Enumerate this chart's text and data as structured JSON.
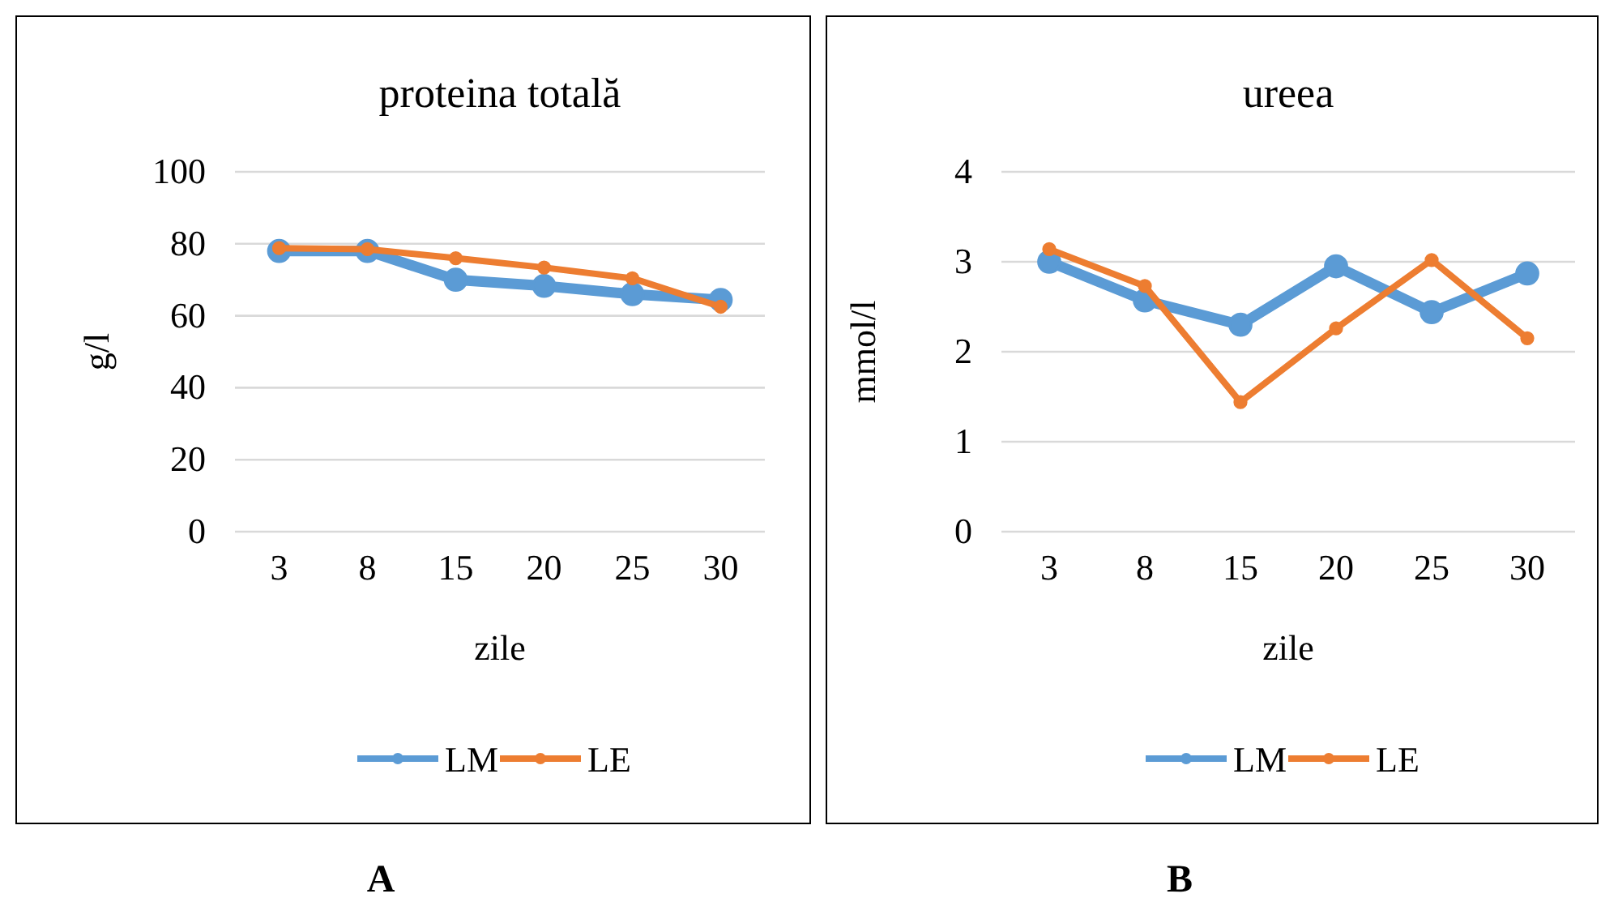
{
  "chart_data": [
    {
      "type": "line",
      "title": "proteina totală",
      "xlabel": "zile",
      "ylabel": "g/l",
      "categories": [
        "3",
        "8",
        "15",
        "20",
        "25",
        "30"
      ],
      "series": [
        {
          "name": "LM",
          "color": "#5b9bd5",
          "values": [
            78,
            78,
            70,
            68.3,
            66,
            64.4
          ]
        },
        {
          "name": "LE",
          "color": "#ed7d31",
          "values": [
            78.8,
            78.5,
            76,
            73.4,
            70.4,
            62.5
          ]
        }
      ],
      "ylim": [
        0,
        100
      ],
      "yticks": [
        0,
        20,
        40,
        60,
        80,
        100
      ],
      "grid": "y",
      "legend": "bottom",
      "marker": "circle",
      "line_style": "solid",
      "annotations": [
        "A"
      ]
    },
    {
      "type": "line",
      "title": "ureea",
      "xlabel": "zile",
      "ylabel": "mmol/l",
      "categories": [
        "3",
        "8",
        "15",
        "20",
        "25",
        "30"
      ],
      "series": [
        {
          "name": "LM",
          "color": "#5b9bd5",
          "values": [
            3.0,
            2.57,
            2.3,
            2.95,
            2.44,
            2.87
          ]
        },
        {
          "name": "LE",
          "color": "#ed7d31",
          "values": [
            3.14,
            2.73,
            1.44,
            2.26,
            3.02,
            2.15
          ]
        }
      ],
      "ylim": [
        0,
        4
      ],
      "yticks": [
        0,
        1,
        2,
        3,
        4
      ],
      "grid": "y",
      "legend": "bottom",
      "marker": "circle",
      "line_style": "solid",
      "annotations": [
        "B"
      ]
    }
  ]
}
